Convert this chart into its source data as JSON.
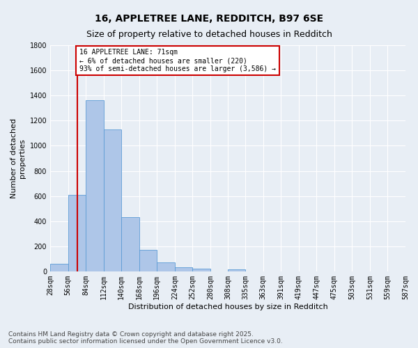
{
  "title1": "16, APPLETREE LANE, REDDITCH, B97 6SE",
  "title2": "Size of property relative to detached houses in Redditch",
  "xlabel": "Distribution of detached houses by size in Redditch",
  "ylabel": "Number of detached\nproperties",
  "bar_edges": [
    28,
    56,
    84,
    112,
    140,
    168,
    196,
    224,
    252,
    280,
    308,
    335,
    363,
    391,
    419,
    447,
    475,
    503,
    531,
    559,
    587
  ],
  "bar_heights": [
    60,
    610,
    1360,
    1130,
    430,
    170,
    70,
    35,
    20,
    0,
    15,
    0,
    0,
    0,
    0,
    0,
    0,
    0,
    0,
    0
  ],
  "bar_color": "#aec6e8",
  "bar_edge_color": "#5b9bd5",
  "bg_color": "#e8eef5",
  "grid_color": "#ffffff",
  "vline_x": 71,
  "vline_color": "#cc0000",
  "annotation_text": "16 APPLETREE LANE: 71sqm\n← 6% of detached houses are smaller (220)\n93% of semi-detached houses are larger (3,586) →",
  "annotation_box_color": "#ffffff",
  "annotation_box_edge_color": "#cc0000",
  "ylim": [
    0,
    1800
  ],
  "yticks": [
    0,
    200,
    400,
    600,
    800,
    1000,
    1200,
    1400,
    1600,
    1800
  ],
  "xtick_labels": [
    "28sqm",
    "56sqm",
    "84sqm",
    "112sqm",
    "140sqm",
    "168sqm",
    "196sqm",
    "224sqm",
    "252sqm",
    "280sqm",
    "308sqm",
    "335sqm",
    "363sqm",
    "391sqm",
    "419sqm",
    "447sqm",
    "475sqm",
    "503sqm",
    "531sqm",
    "559sqm",
    "587sqm"
  ],
  "footer_text": "Contains HM Land Registry data © Crown copyright and database right 2025.\nContains public sector information licensed under the Open Government Licence v3.0.",
  "title_fontsize": 10,
  "subtitle_fontsize": 9,
  "axis_label_fontsize": 8,
  "tick_fontsize": 7,
  "annotation_fontsize": 7,
  "footer_fontsize": 6.5
}
